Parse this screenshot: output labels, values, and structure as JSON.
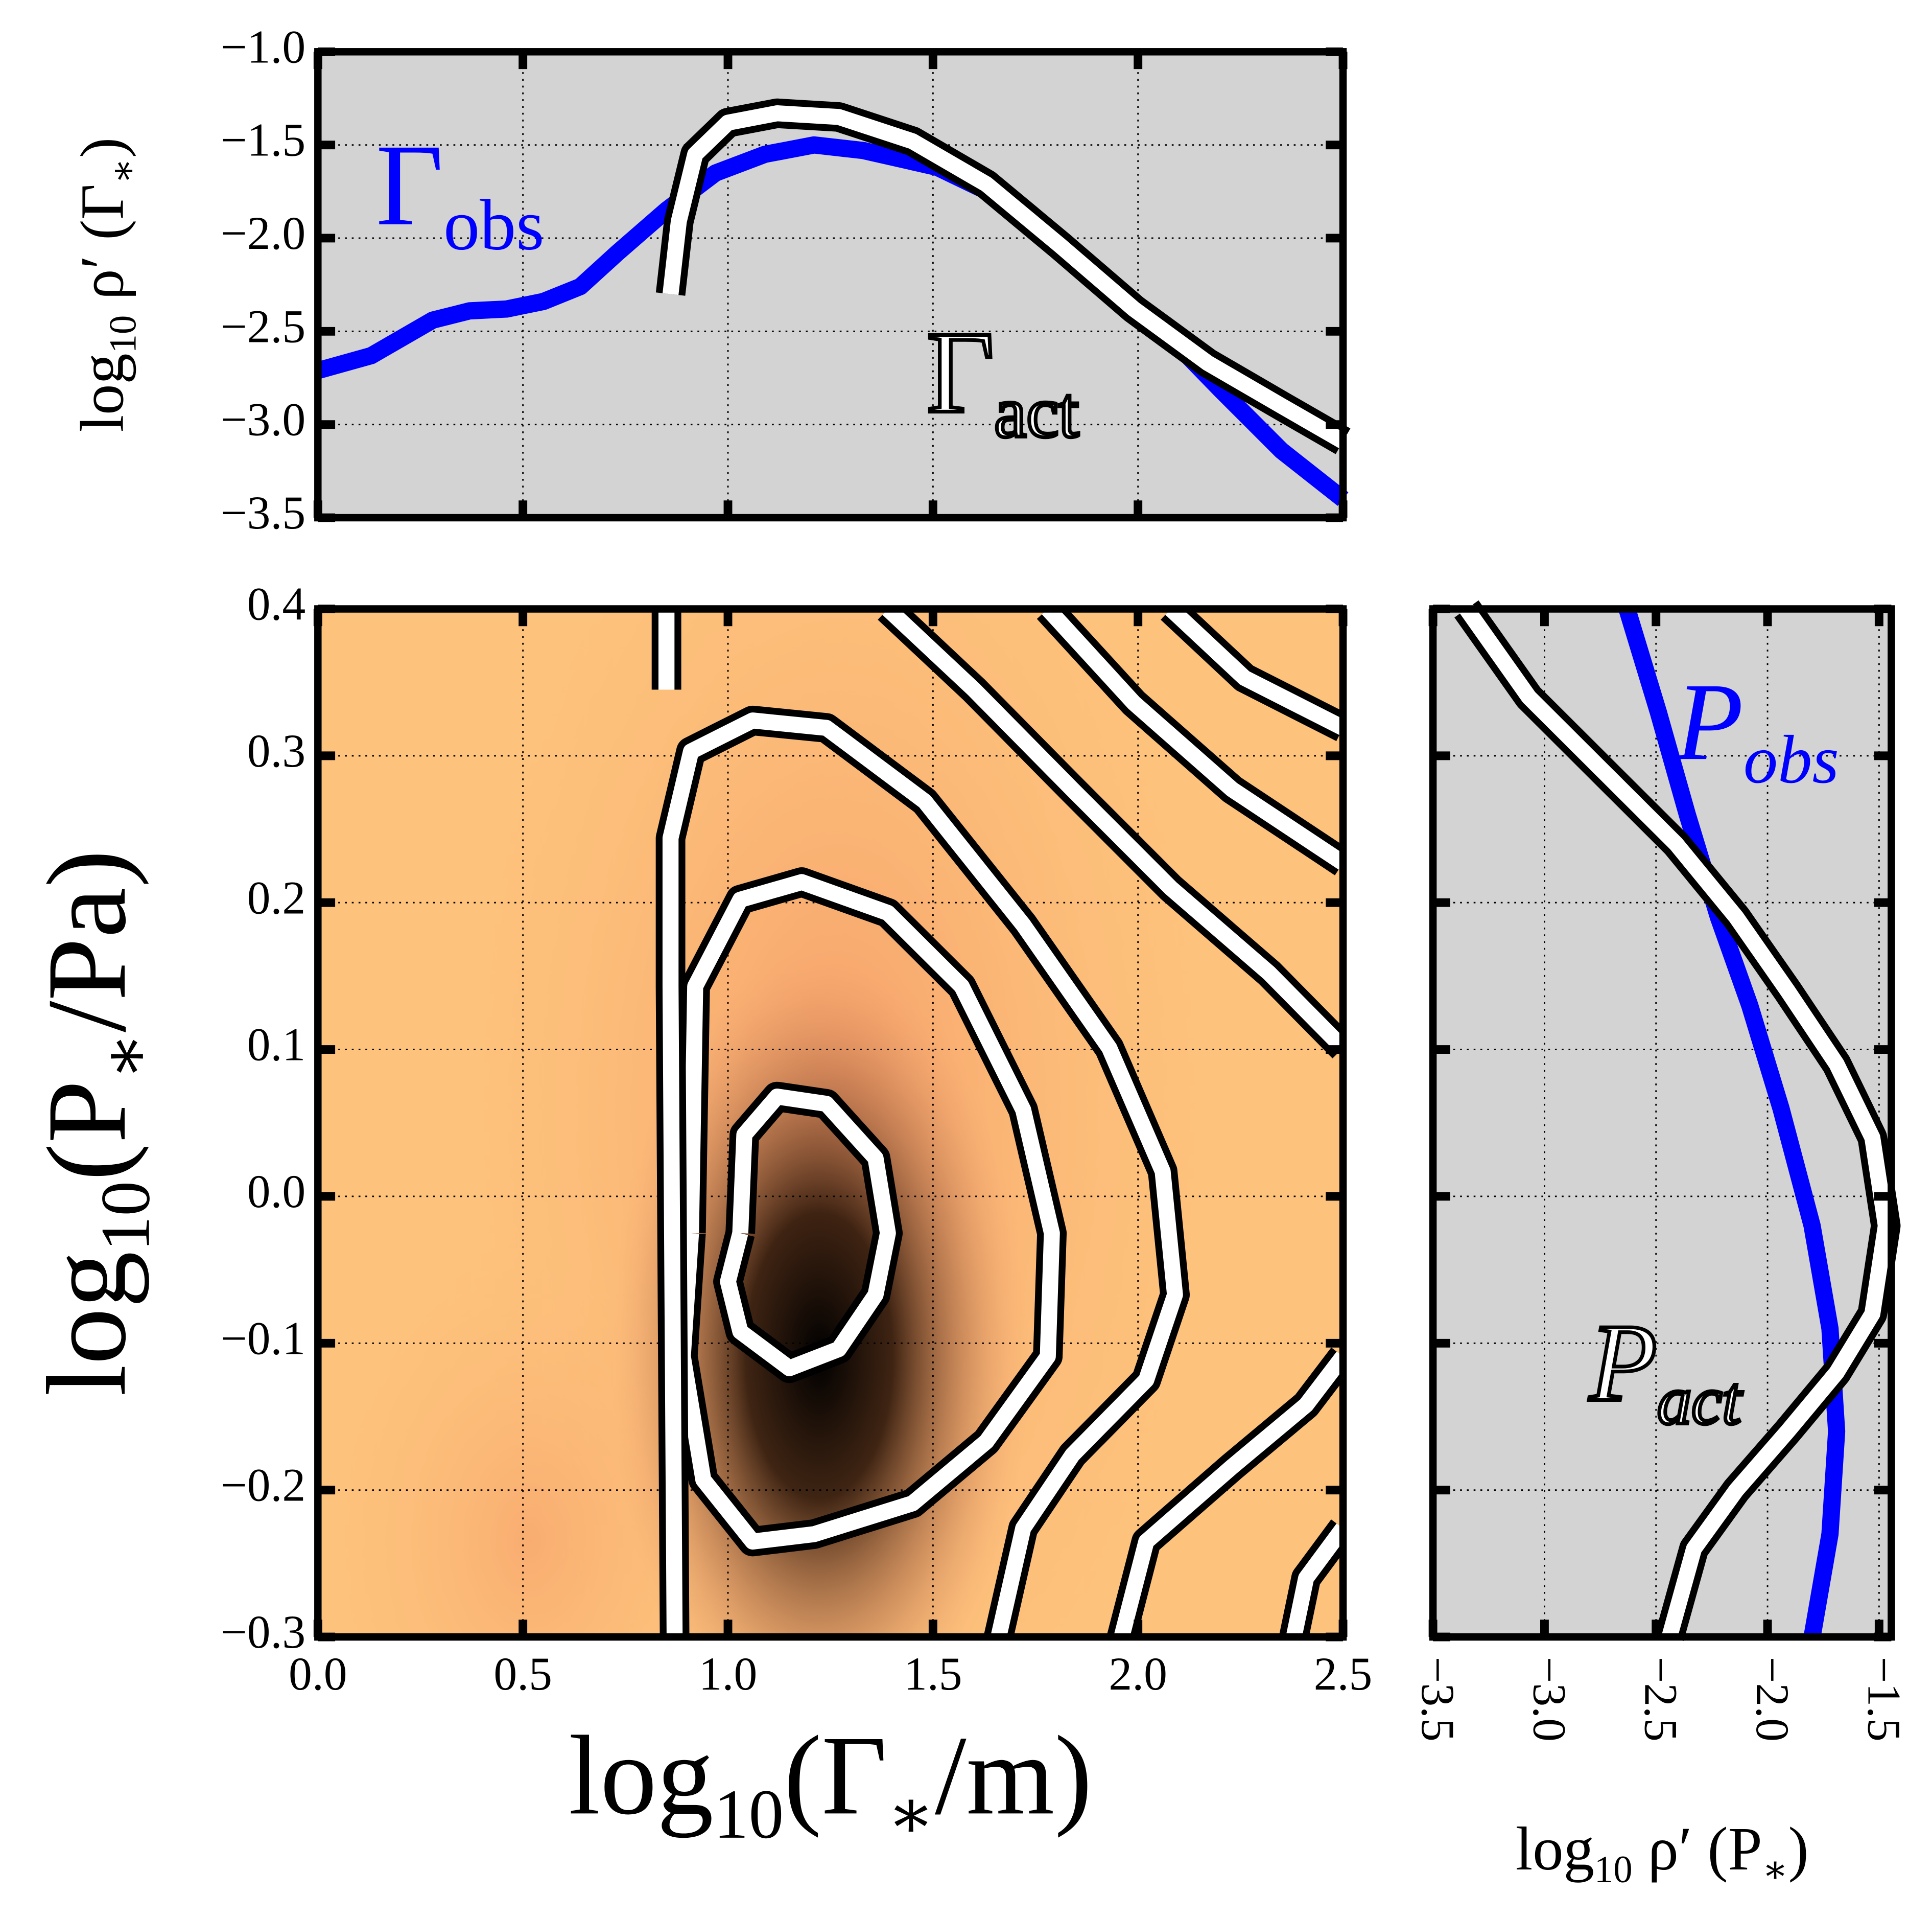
{
  "chart_data": [
    {
      "type": "line",
      "ylabel": [
        "log",
        "10",
        " ρ′ (Γ",
        "∗",
        ")"
      ],
      "xlim": [
        0,
        2.5
      ],
      "ylim": [
        -3.5,
        -1.0
      ],
      "xticks": [
        0,
        0.5,
        1,
        1.5,
        2,
        2.5
      ],
      "yticks": [
        {
          "value": -1.0,
          "label": "−1.0"
        },
        {
          "value": -1.5,
          "label": "−1.5"
        },
        {
          "value": -2.0,
          "label": "−2.0"
        },
        {
          "value": -2.5,
          "label": "−2.5"
        },
        {
          "value": -3.0,
          "label": "−3.0"
        },
        {
          "value": -3.5,
          "label": "−3.5"
        }
      ],
      "grid": true,
      "background": "#d3d3d3",
      "series": [
        {
          "name": [
            "Γ",
            "obs"
          ],
          "color": "#0000ff",
          "style": "solid",
          "x": [
            0,
            0.13,
            0.28,
            0.37,
            0.46,
            0.55,
            0.64,
            0.73,
            0.85,
            0.97,
            1.09,
            1.21,
            1.33,
            1.51,
            1.69,
            1.87,
            2.05,
            2.2,
            2.35,
            2.5
          ],
          "y": [
            -2.71,
            -2.63,
            -2.44,
            -2.39,
            -2.38,
            -2.34,
            -2.26,
            -2.08,
            -1.85,
            -1.65,
            -1.55,
            -1.5,
            -1.53,
            -1.62,
            -1.81,
            -2.11,
            -2.47,
            -2.81,
            -3.14,
            -3.4
          ]
        },
        {
          "name": [
            "Γ",
            "act"
          ],
          "color": "#ffffff",
          "style": "outlined",
          "x": [
            0.86,
            0.88,
            0.92,
            1.0,
            1.12,
            1.27,
            1.45,
            1.63,
            1.81,
            1.99,
            2.17,
            2.35,
            2.5
          ],
          "y": [
            -2.3,
            -1.91,
            -1.55,
            -1.38,
            -1.33,
            -1.35,
            -1.48,
            -1.71,
            -2.04,
            -2.38,
            -2.67,
            -2.9,
            -3.09
          ]
        }
      ]
    },
    {
      "type": "contour",
      "xlabel": [
        "log",
        "10",
        "(Γ",
        "∗",
        "/m)"
      ],
      "ylabel": [
        "log",
        "10",
        "(P",
        "∗",
        "/Pa)"
      ],
      "xlim": [
        0,
        2.5
      ],
      "ylim": [
        -0.3,
        0.4
      ],
      "xticks": [
        {
          "value": 0,
          "label": "0.0"
        },
        0.5,
        {
          "value": 1,
          "label": "1.0"
        },
        1.5,
        {
          "value": 2,
          "label": "2.0"
        },
        2.5
      ],
      "yticks": [
        0.4,
        0.3,
        0.2,
        0.1,
        {
          "value": 0,
          "label": "0.0"
        },
        {
          "value": -0.1,
          "label": "−0.1"
        },
        {
          "value": -0.2,
          "label": "−0.2"
        },
        {
          "value": -0.3,
          "label": "−0.3"
        }
      ],
      "grid": true,
      "contours": [
        {
          "x": [
            1.03,
            1.04,
            1.12,
            1.24,
            1.36,
            1.39,
            1.36,
            1.27,
            1.15,
            1.03,
            1.0,
            1.03
          ],
          "y": [
            -0.025,
            0.042,
            0.068,
            0.063,
            0.026,
            -0.025,
            -0.067,
            -0.104,
            -0.117,
            -0.092,
            -0.058,
            -0.025
          ]
        },
        {
          "x": [
            0.91,
            0.92,
            1.03,
            1.18,
            1.39,
            1.57,
            1.72,
            1.79,
            1.78,
            1.63,
            1.45,
            1.21,
            1.06,
            0.94,
            0.89,
            0.91
          ],
          "y": [
            -0.025,
            0.143,
            0.202,
            0.214,
            0.193,
            0.143,
            0.059,
            -0.025,
            -0.109,
            -0.167,
            -0.209,
            -0.23,
            -0.235,
            -0.193,
            -0.109,
            -0.025
          ]
        },
        {
          "x": [
            0.87,
            0.86,
            0.86,
            0.91,
            1.06,
            1.24,
            1.48,
            1.72,
            1.93,
            2.06,
            2.09,
            2.02,
            1.84,
            1.72,
            1.66
          ],
          "y": [
            -0.3,
            0.143,
            0.244,
            0.303,
            0.324,
            0.319,
            0.269,
            0.185,
            0.101,
            0.017,
            -0.067,
            -0.125,
            -0.176,
            -0.226,
            -0.3
          ]
        },
        {
          "x": [
            1.39,
            1.6,
            1.84,
            2.08,
            2.32,
            2.5
          ],
          "y": [
            0.4,
            0.345,
            0.277,
            0.21,
            0.152,
            0.101
          ]
        },
        {
          "x": [
            1.96,
            2.02,
            2.23,
            2.41,
            2.5
          ],
          "y": [
            -0.3,
            -0.235,
            -0.184,
            -0.142,
            -0.109
          ]
        },
        {
          "x": [
            1.78,
            1.99,
            2.23,
            2.5
          ],
          "y": [
            0.4,
            0.336,
            0.277,
            0.227
          ]
        },
        {
          "x": [
            2.38,
            2.41,
            2.5
          ],
          "y": [
            -0.3,
            -0.26,
            -0.226
          ]
        },
        {
          "x": [
            2.08,
            2.26,
            2.5
          ],
          "y": [
            0.4,
            0.353,
            0.319
          ]
        },
        {
          "x": [
            0.85,
            0.85
          ],
          "y": [
            0.4,
            0.345
          ]
        }
      ]
    },
    {
      "type": "line",
      "xlabel": [
        "log",
        "10",
        " ρ′ (P",
        "∗",
        ")"
      ],
      "xlim": [
        -3.5,
        -1.445
      ],
      "ylim": [
        -0.3,
        0.4
      ],
      "xticks": [
        {
          "value": -3.5,
          "label": "−3.5"
        },
        {
          "value": -3.0,
          "label": "−3.0"
        },
        {
          "value": -2.5,
          "label": "−2.5"
        },
        {
          "value": -2.0,
          "label": "−2.0"
        },
        {
          "value": -1.5,
          "label": "−1.5"
        }
      ],
      "yticks": [
        0.4,
        0.3,
        0.2,
        0.1,
        0,
        -0.1,
        -0.2,
        -0.3
      ],
      "grid": true,
      "background": "#d3d3d3",
      "series": [
        {
          "name": [
            "P",
            "obs"
          ],
          "color": "#0000ff",
          "style": "solid",
          "x": [
            -2.63,
            -2.49,
            -2.36,
            -2.22,
            -2.08,
            -1.94,
            -1.8,
            -1.72,
            -1.69,
            -1.72,
            -1.8
          ],
          "y": [
            0.4,
            0.33,
            0.26,
            0.19,
            0.13,
            0.06,
            -0.02,
            -0.09,
            -0.16,
            -0.23,
            -0.3
          ]
        },
        {
          "name": [
            "P",
            "act"
          ],
          "color": "#ffffff",
          "style": "outlined",
          "x": [
            -3.35,
            -3.07,
            -2.74,
            -2.41,
            -2.14,
            -1.91,
            -1.69,
            -1.53,
            -1.47,
            -1.53,
            -1.69,
            -1.91,
            -2.14,
            -2.33,
            -2.44
          ],
          "y": [
            0.4,
            0.34,
            0.29,
            0.24,
            0.19,
            0.14,
            0.09,
            0.04,
            -0.02,
            -0.08,
            -0.12,
            -0.16,
            -0.2,
            -0.24,
            -0.3
          ]
        }
      ]
    }
  ]
}
